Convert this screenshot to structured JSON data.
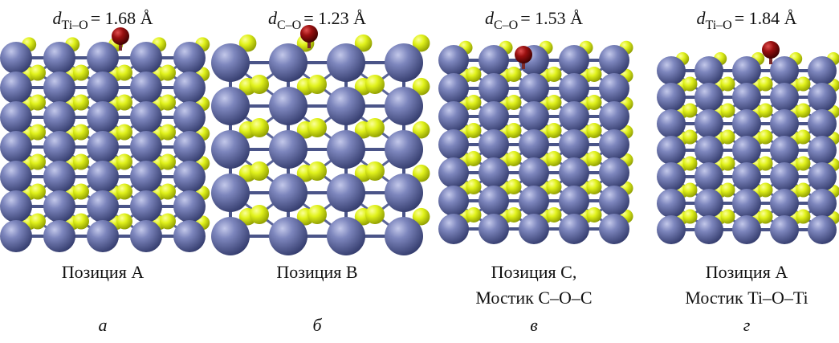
{
  "panels": [
    {
      "bond": {
        "symbol": "d",
        "subscript": "Ti–O",
        "value": "= 1.68 Å"
      },
      "caption": [
        "Позиция A"
      ],
      "letter": "а"
    },
    {
      "bond": {
        "symbol": "d",
        "subscript": "C–O",
        "value": "= 1.23 Å"
      },
      "caption": [
        "Позиция B"
      ],
      "letter": "б"
    },
    {
      "bond": {
        "symbol": "d",
        "subscript": "C–O",
        "value": "= 1.53 Å"
      },
      "caption": [
        "Позиция C,",
        "Мостик C–O–C"
      ],
      "letter": "в"
    },
    {
      "bond": {
        "symbol": "d",
        "subscript": "Ti–O",
        "value": "= 1.84 Å"
      },
      "caption": [
        "Позиция A",
        "Мостик Ti–O–Ti"
      ],
      "letter": "г"
    }
  ]
}
